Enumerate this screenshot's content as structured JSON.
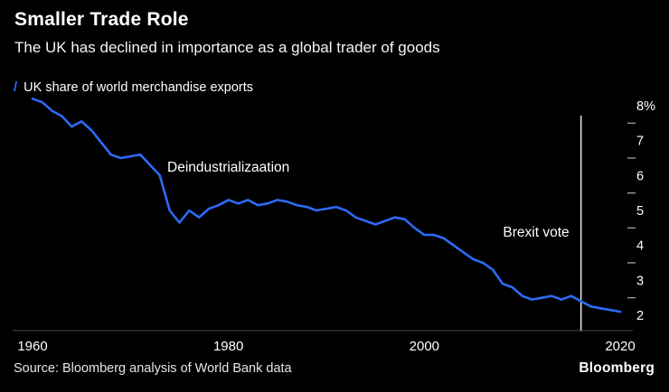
{
  "header": {
    "title": "Smaller Trade Role",
    "subtitle": "The UK has declined in importance as a global trader of goods"
  },
  "legend": {
    "marker": "/",
    "label": "UK share of world merchandise exports"
  },
  "footer": {
    "source": "Source: Bloomberg analysis of World Bank data",
    "logo": "Bloomberg"
  },
  "colors": {
    "background": "#000000",
    "line": "#2D6AF6",
    "axis": "#4d4d4d",
    "tick_dash": "#999999",
    "vline": "#E8E8E8",
    "text": "#FFFFFF"
  },
  "chart_data": {
    "type": "line",
    "title": "Smaller Trade Role",
    "subtitle": "The UK has declined in importance as a global trader of goods",
    "xlabel": "",
    "ylabel": "UK share of world merchandise exports (%)",
    "xlim": [
      1960,
      2020
    ],
    "ylim": [
      1.56,
      8.13
    ],
    "xticks": [
      1960,
      1980,
      2000,
      2020
    ],
    "yticks": {
      "values": [
        8,
        7,
        6,
        5,
        4,
        3,
        2
      ],
      "labels": [
        "8%",
        "7",
        "6",
        "5",
        "4",
        "3",
        "2"
      ]
    },
    "grid": false,
    "legend_position": "top-left",
    "line_color": "#2D6AF6",
    "vline": {
      "year": 2016,
      "color": "#E8E8E8",
      "label": "Brexit vote"
    },
    "annotations": [
      {
        "text": "Deindustrializaation",
        "year": 1980,
        "value": 6.11,
        "anchor": "middle"
      },
      {
        "text": "Brexit vote",
        "year": 2014.8,
        "value": 4.25,
        "anchor": "end"
      }
    ],
    "series": [
      {
        "name": "UK share of world merchandise exports",
        "x": [
          1960,
          1961,
          1962,
          1963,
          1964,
          1965,
          1966,
          1967,
          1968,
          1969,
          1970,
          1971,
          1972,
          1973,
          1974,
          1975,
          1976,
          1977,
          1978,
          1979,
          1980,
          1981,
          1982,
          1983,
          1984,
          1985,
          1986,
          1987,
          1988,
          1989,
          1990,
          1991,
          1992,
          1993,
          1994,
          1995,
          1996,
          1997,
          1998,
          1999,
          2000,
          2001,
          2002,
          2003,
          2004,
          2005,
          2006,
          2007,
          2008,
          2009,
          2010,
          2011,
          2012,
          2013,
          2014,
          2015,
          2016,
          2017,
          2018,
          2019,
          2020
        ],
        "y": [
          8.2,
          8.1,
          7.85,
          7.7,
          7.4,
          7.55,
          7.3,
          6.95,
          6.6,
          6.5,
          6.55,
          6.6,
          6.3,
          6.0,
          5.0,
          4.65,
          5.0,
          4.8,
          5.05,
          5.15,
          5.3,
          5.2,
          5.3,
          5.15,
          5.2,
          5.3,
          5.25,
          5.15,
          5.1,
          5.0,
          5.05,
          5.1,
          5.0,
          4.8,
          4.7,
          4.6,
          4.7,
          4.8,
          4.75,
          4.5,
          4.3,
          4.3,
          4.2,
          4.0,
          3.8,
          3.6,
          3.5,
          3.3,
          2.9,
          2.8,
          2.55,
          2.45,
          2.5,
          2.55,
          2.45,
          2.55,
          2.4,
          2.25,
          2.2,
          2.15,
          2.1
        ]
      }
    ]
  }
}
